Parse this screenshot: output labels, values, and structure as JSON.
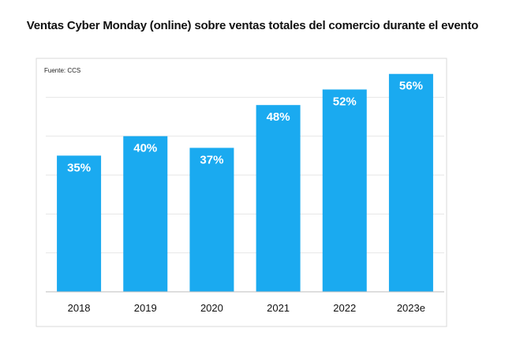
{
  "chart_data": {
    "type": "bar",
    "title": "Ventas Cyber Monday (online) sobre ventas totales del comercio durante el evento",
    "source": "Fuente: CCS",
    "categories": [
      "2018",
      "2019",
      "2020",
      "2021",
      "2022",
      "2023e"
    ],
    "values": [
      35,
      40,
      37,
      48,
      52,
      56
    ],
    "value_labels": [
      "35%",
      "40%",
      "37%",
      "48%",
      "52%",
      "56%"
    ],
    "ylim": [
      0,
      60
    ],
    "grid": true,
    "bar_color": "#1aaaf0",
    "grid_color": "#e6e6e6",
    "axis_color": "#bdbdbd",
    "frame_color": "#d9d9d9"
  }
}
